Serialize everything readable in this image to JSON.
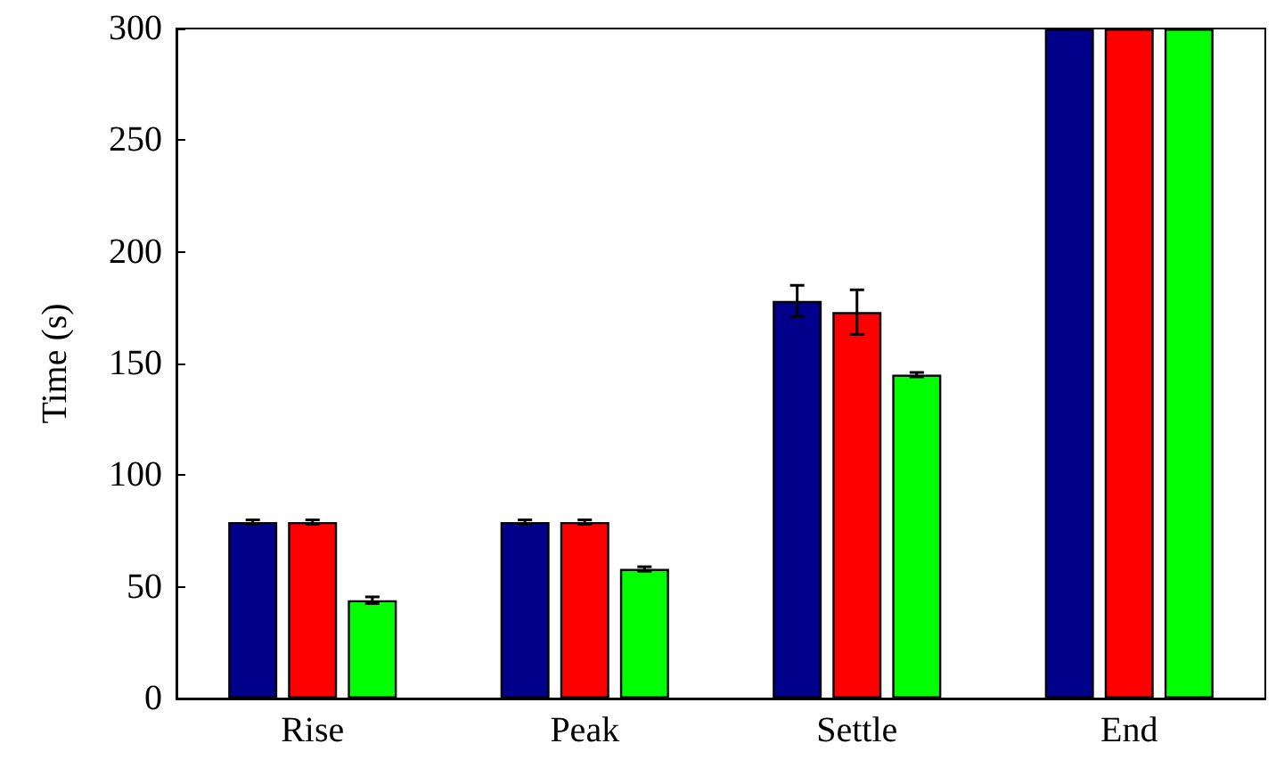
{
  "chart_data": {
    "type": "bar",
    "ylabel": "Time (s)",
    "categories": [
      "Rise",
      "Peak",
      "Settle",
      "End"
    ],
    "series": [
      {
        "color": "#00008b",
        "values": [
          79,
          79,
          178,
          300
        ],
        "errors": [
          1,
          1,
          7,
          null
        ]
      },
      {
        "color": "#ff0000",
        "values": [
          79,
          79,
          173,
          300
        ],
        "errors": [
          1,
          1,
          10,
          null
        ]
      },
      {
        "color": "#00ff00",
        "values": [
          44,
          58,
          145,
          300
        ],
        "errors": [
          1.5,
          1,
          1,
          null
        ]
      }
    ],
    "ylim": [
      0,
      300
    ],
    "yticks": [
      0,
      50,
      100,
      150,
      200,
      250,
      300
    ],
    "grid": false
  }
}
